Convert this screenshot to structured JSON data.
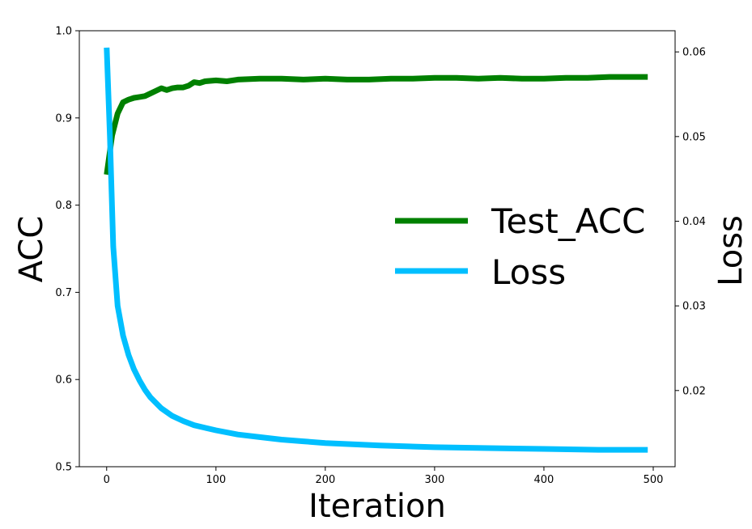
{
  "chart_data": {
    "type": "line",
    "title": "",
    "xlabel": "Iteration",
    "ylabel_left": "ACC",
    "ylabel_right": "Loss",
    "xlim": [
      -25,
      520
    ],
    "ylim_left": [
      0.5,
      1.0
    ],
    "ylim_right": [
      0.011,
      0.0625
    ],
    "x_ticks": [
      0,
      100,
      200,
      300,
      400,
      500
    ],
    "y_left_ticks": [
      0.5,
      0.6,
      0.7,
      0.8,
      0.9,
      1.0
    ],
    "y_left_tick_labels": [
      "0.5",
      "0.6",
      "0.7",
      "0.8",
      "0.9",
      "1.0"
    ],
    "y_right_ticks": [
      0.02,
      0.03,
      0.04,
      0.05,
      0.06
    ],
    "y_right_tick_labels": [
      "0.02",
      "0.03",
      "0.04",
      "0.05",
      "0.06"
    ],
    "grid": false,
    "legend_position": "center-right",
    "series": [
      {
        "name": "Test_ACC",
        "axis": "left",
        "color": "#008000",
        "x": [
          0,
          5,
          10,
          15,
          20,
          25,
          30,
          35,
          40,
          45,
          50,
          55,
          60,
          65,
          70,
          75,
          80,
          85,
          90,
          100,
          110,
          120,
          140,
          160,
          180,
          200,
          220,
          240,
          260,
          280,
          300,
          320,
          340,
          360,
          380,
          400,
          420,
          440,
          460,
          480,
          495
        ],
        "y": [
          0.835,
          0.88,
          0.905,
          0.918,
          0.921,
          0.923,
          0.924,
          0.925,
          0.928,
          0.931,
          0.934,
          0.932,
          0.934,
          0.935,
          0.935,
          0.937,
          0.941,
          0.94,
          0.942,
          0.943,
          0.942,
          0.944,
          0.945,
          0.945,
          0.944,
          0.945,
          0.944,
          0.944,
          0.945,
          0.945,
          0.946,
          0.946,
          0.945,
          0.946,
          0.945,
          0.945,
          0.946,
          0.946,
          0.947,
          0.947,
          0.947
        ]
      },
      {
        "name": "Loss",
        "axis": "right",
        "color": "#00bfff",
        "x": [
          0,
          3,
          6,
          10,
          15,
          20,
          25,
          30,
          35,
          40,
          50,
          60,
          70,
          80,
          90,
          100,
          120,
          140,
          160,
          180,
          200,
          250,
          300,
          350,
          400,
          450,
          495
        ],
        "y": [
          0.0605,
          0.05,
          0.037,
          0.03,
          0.0265,
          0.0242,
          0.0225,
          0.0212,
          0.0201,
          0.0192,
          0.0179,
          0.017,
          0.0164,
          0.0159,
          0.0156,
          0.0153,
          0.0148,
          0.0145,
          0.0142,
          0.014,
          0.0138,
          0.0135,
          0.0133,
          0.0132,
          0.0131,
          0.013,
          0.013
        ]
      }
    ]
  }
}
